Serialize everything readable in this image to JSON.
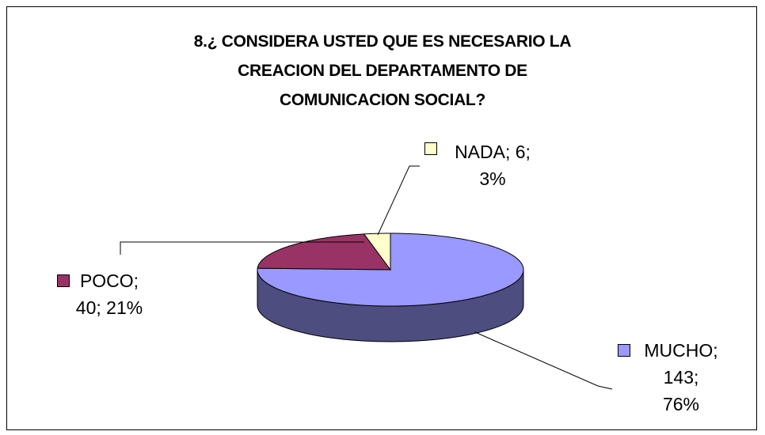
{
  "chart_data": {
    "type": "pie3d",
    "title": "8.¿ CONSIDERA USTED QUE ES NECESARIO LA\nCREACION DEL DEPARTAMENTO DE\nCOMUNICACION SOCIAL?",
    "categories": [
      "MUCHO",
      "POCO",
      "NADA"
    ],
    "values": [
      143,
      40,
      6
    ],
    "value_labels": [
      "MUCHO;\n143;\n76%",
      "POCO;\n40; 21%",
      "NADA; 6;\n3%"
    ],
    "colors": [
      "#9999ff",
      "#993366",
      "#ffffcc"
    ]
  }
}
